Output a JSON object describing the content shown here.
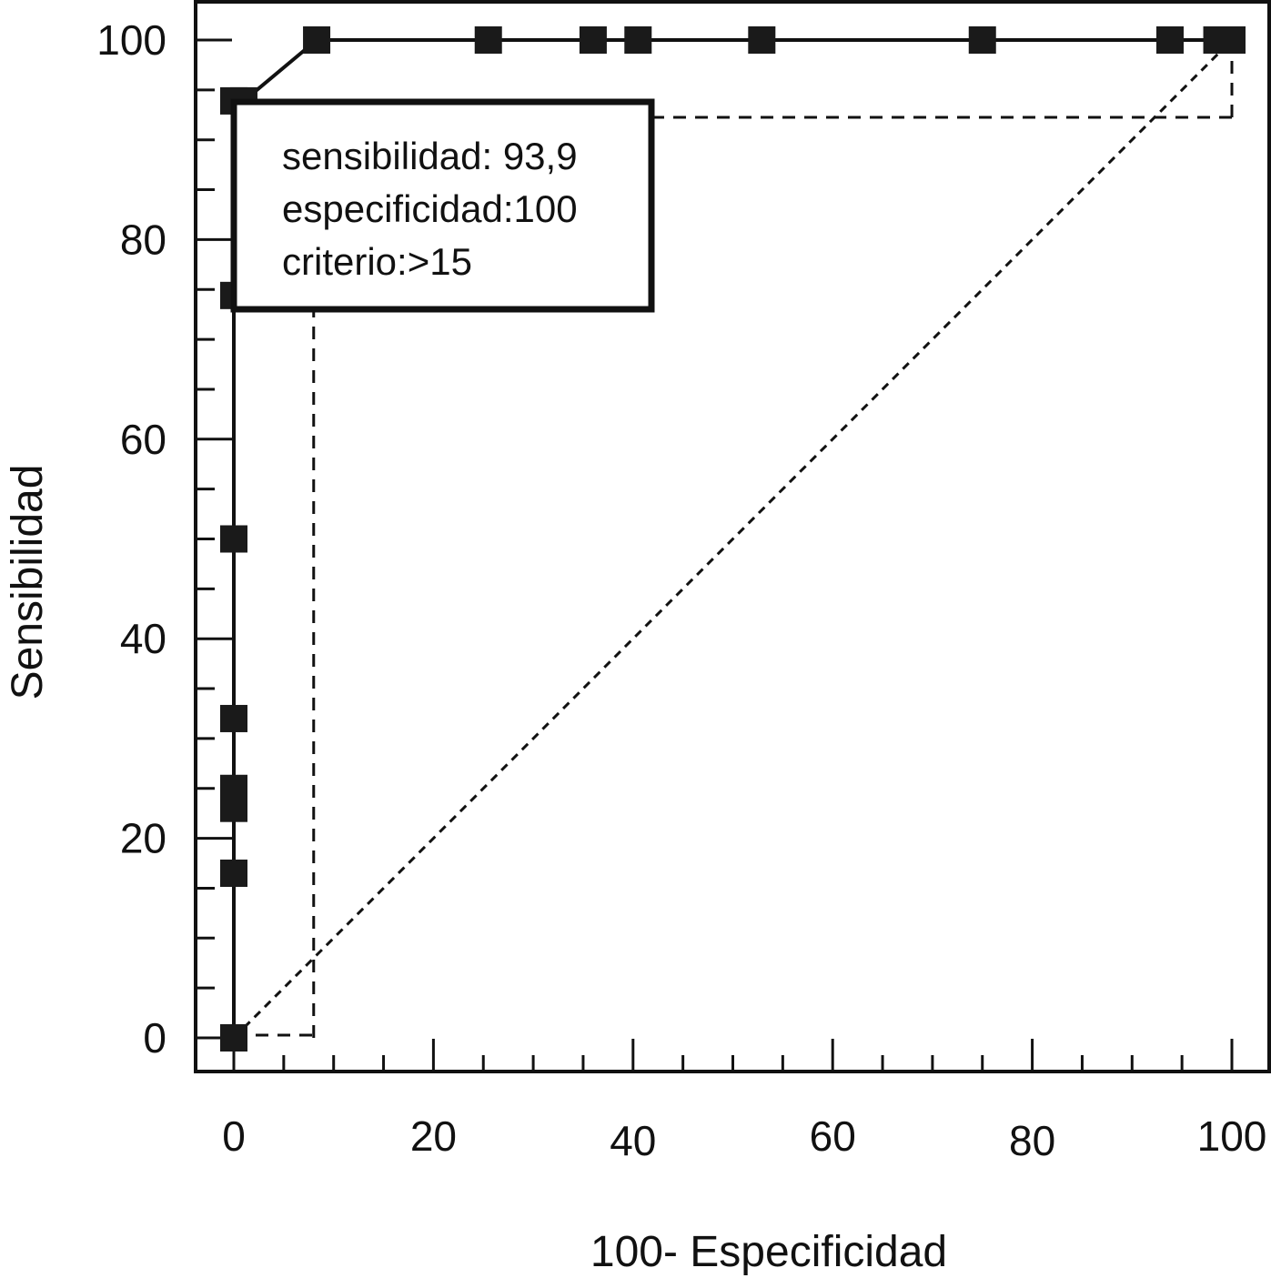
{
  "chart_data": {
    "type": "line",
    "xlabel": "100- Especificidad",
    "ylabel": "Sensibilidad",
    "xlim": [
      0,
      100
    ],
    "ylim": [
      0,
      100
    ],
    "x_ticks": [
      "0",
      "20",
      "40",
      "60",
      "80",
      "100"
    ],
    "y_ticks": [
      "0",
      "20",
      "40",
      "60",
      "80",
      "100"
    ],
    "series": [
      {
        "style": "solid-with-square-markers",
        "x": [
          0,
          0,
          0,
          0,
          0,
          0,
          0,
          0,
          1,
          8.3,
          25.5,
          36,
          40.5,
          52.9,
          75,
          93.8,
          98.5,
          100
        ],
        "y": [
          0,
          16.5,
          23,
          25,
          32,
          50,
          74.4,
          93.9,
          93.9,
          100,
          100,
          100,
          100,
          100,
          100,
          100,
          100,
          100
        ]
      }
    ],
    "reference_line": {
      "style": "dotted",
      "x": [
        0,
        100
      ],
      "y": [
        0,
        100
      ]
    },
    "criterion_lines": {
      "style": "dashed",
      "vertical": {
        "x": 8,
        "y_from": 0,
        "y_to": 75
      },
      "bottom": {
        "x_from": 0,
        "x_to": 8,
        "y": 0
      },
      "horizontal": {
        "x_from": 40,
        "x_to": 100,
        "y": 92.5
      },
      "right": {
        "x": 100,
        "y_from": 92.5,
        "y_to": 100
      }
    },
    "annotation": {
      "line1": "sensibilidad: 93,9",
      "line2": "especificidad:100",
      "line3": "criterio:>15"
    }
  }
}
